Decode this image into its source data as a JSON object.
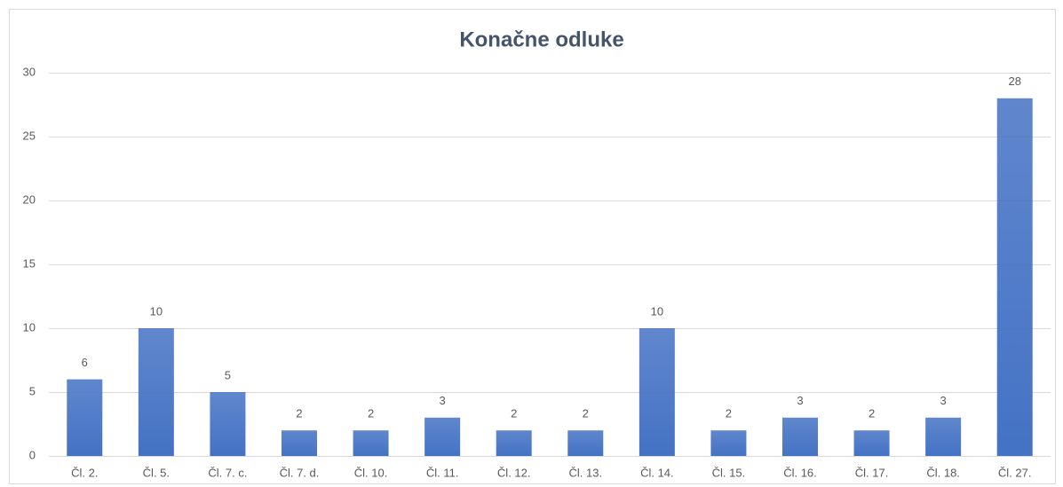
{
  "chart_data": {
    "type": "bar",
    "title": "Konačne odluke",
    "categories": [
      "Čl. 2.",
      "Čl. 5.",
      "Čl. 7. c.",
      "Čl. 7. d.",
      "Čl. 10.",
      "Čl. 11.",
      "Čl. 12.",
      "Čl. 13.",
      "Čl. 14.",
      "Čl. 15.",
      "Čl. 16.",
      "Čl. 17.",
      "Čl. 18.",
      "Čl. 27."
    ],
    "values": [
      6,
      10,
      5,
      2,
      2,
      3,
      2,
      2,
      10,
      2,
      3,
      2,
      3,
      28
    ],
    "color": "#4472c4",
    "ylim": [
      0,
      30
    ],
    "yticks": [
      0,
      5,
      10,
      15,
      20,
      25,
      30
    ],
    "grid": true
  }
}
